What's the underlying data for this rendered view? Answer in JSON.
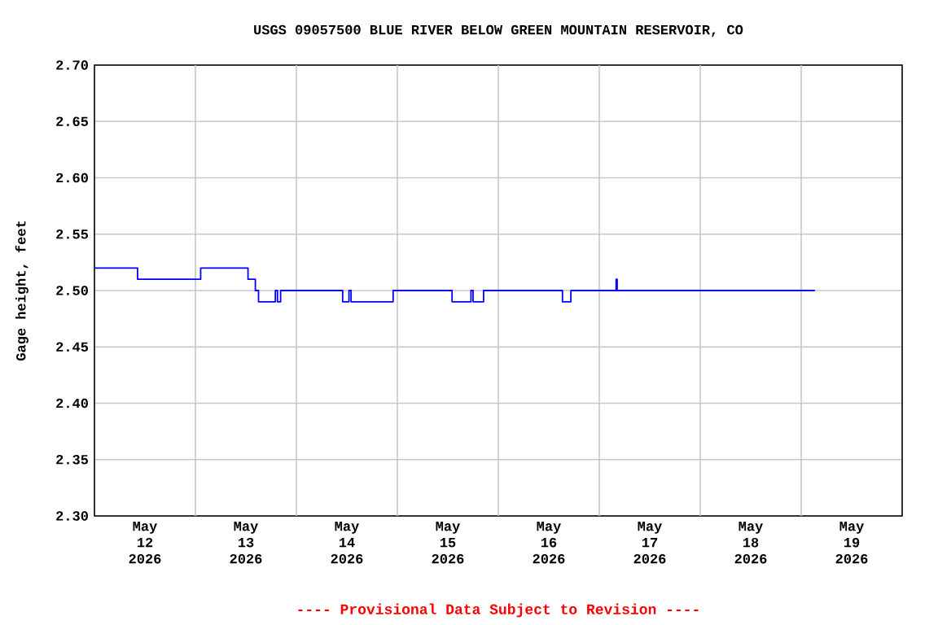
{
  "chart_data": {
    "type": "step",
    "title": "USGS 09057500 BLUE RIVER BELOW GREEN MOUNTAIN RESERVOIR, CO",
    "ylabel": "Gage height, feet",
    "annotations": [
      "---- Provisional Data Subject to Revision ----"
    ],
    "x": [
      "2026-05-12T00:00",
      "2026-05-12T10:15",
      "2026-05-13T01:15",
      "2026-05-13T12:30",
      "2026-05-13T14:15",
      "2026-05-13T15:00",
      "2026-05-13T19:00",
      "2026-05-13T19:30",
      "2026-05-13T20:15",
      "2026-05-14T11:00",
      "2026-05-14T12:30",
      "2026-05-14T13:00",
      "2026-05-14T23:00",
      "2026-05-15T13:00",
      "2026-05-15T17:30",
      "2026-05-15T18:00",
      "2026-05-15T20:30",
      "2026-05-16T15:15",
      "2026-05-16T17:15",
      "2026-05-17T04:00",
      "2026-05-17T04:15",
      "2026-05-19T03:15"
    ],
    "series": [
      {
        "color": "#0000ff",
        "values": [
          2.52,
          2.51,
          2.52,
          2.51,
          2.5,
          2.49,
          2.5,
          2.49,
          2.5,
          2.49,
          2.5,
          2.49,
          2.5,
          2.49,
          2.5,
          2.49,
          2.5,
          2.49,
          2.5,
          2.51,
          2.5,
          2.5
        ]
      }
    ],
    "xlim": [
      "2026-05-12T00:00",
      "2026-05-20T00:00"
    ],
    "xticks": [
      {
        "value": "2026-05-12T12:00",
        "label": "May 12 2026"
      },
      {
        "value": "2026-05-13T12:00",
        "label": "May 13 2026"
      },
      {
        "value": "2026-05-14T12:00",
        "label": "May 14 2026"
      },
      {
        "value": "2026-05-15T12:00",
        "label": "May 15 2026"
      },
      {
        "value": "2026-05-16T12:00",
        "label": "May 16 2026"
      },
      {
        "value": "2026-05-17T12:00",
        "label": "May 17 2026"
      },
      {
        "value": "2026-05-18T12:00",
        "label": "May 18 2026"
      },
      {
        "value": "2026-05-19T12:00",
        "label": "May 19 2026"
      },
      {
        "value": "2026-05-13T00:00",
        "label": null
      },
      {
        "value": "2026-05-14T00:00",
        "label": null
      },
      {
        "value": "2026-05-15T00:00",
        "label": null
      },
      {
        "value": "2026-05-16T00:00",
        "label": null
      },
      {
        "value": "2026-05-17T00:00",
        "label": null
      },
      {
        "value": "2026-05-18T00:00",
        "label": null
      },
      {
        "value": "2026-05-19T00:00",
        "label": null
      }
    ],
    "ylim": [
      2.3,
      2.7
    ],
    "yticks": [
      {
        "value": 2.3,
        "label": "2.30"
      },
      {
        "value": 2.35,
        "label": "2.35"
      },
      {
        "value": 2.4,
        "label": "2.40"
      },
      {
        "value": 2.45,
        "label": "2.45"
      },
      {
        "value": 2.5,
        "label": "2.50"
      },
      {
        "value": 2.55,
        "label": "2.55"
      },
      {
        "value": 2.6,
        "label": "2.60"
      },
      {
        "value": 2.65,
        "label": "2.65"
      },
      {
        "value": 2.7,
        "label": "2.70"
      }
    ],
    "grid": true,
    "marker": "none",
    "line_style": "solid"
  }
}
